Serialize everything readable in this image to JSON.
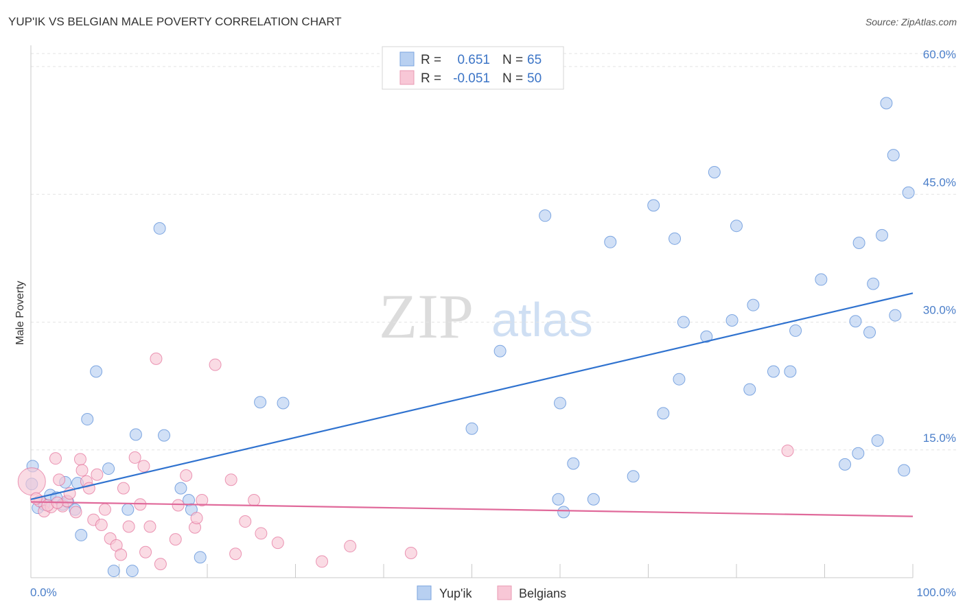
{
  "title": "YUP'IK VS BELGIAN MALE POVERTY CORRELATION CHART",
  "source": "Source: ZipAtlas.com",
  "watermark": {
    "zip": "ZIP",
    "atlas": "atlas"
  },
  "legend_box": {
    "r_label": "R =",
    "n_label": "N =",
    "rows": [
      {
        "r": "0.651",
        "n": "65",
        "color": "#a9c7ef"
      },
      {
        "r": "-0.051",
        "n": "50",
        "color": "#f6b8cc"
      }
    ]
  },
  "chart_data": {
    "type": "scatter",
    "xlabel": "",
    "ylabel": "Male Poverty",
    "xlim": [
      0,
      100
    ],
    "ylim": [
      0,
      60
    ],
    "x_ticks": [
      {
        "value": 0,
        "label": "0.0%"
      },
      {
        "value": 100,
        "label": "100.0%"
      }
    ],
    "y_ticks": [
      {
        "value": 15,
        "label": "15.0%"
      },
      {
        "value": 30,
        "label": "30.0%"
      },
      {
        "value": 45,
        "label": "45.0%"
      },
      {
        "value": 60,
        "label": "60.0%"
      }
    ],
    "grid": "horizontal dashed",
    "series": [
      {
        "name": "Yup'ik",
        "color": "#4f86d6",
        "fill": "#b8d0f1",
        "trend": {
          "x": [
            0,
            100
          ],
          "y": [
            9.2,
            33.4
          ]
        },
        "points": [
          [
            0.2,
            13.1
          ],
          [
            0.8,
            8.2
          ],
          [
            1.5,
            8.6
          ],
          [
            2.2,
            9.7
          ],
          [
            2.9,
            9.4
          ],
          [
            3.6,
            8.6
          ],
          [
            3.9,
            11.2
          ],
          [
            4.2,
            8.9
          ],
          [
            5.0,
            8.0
          ],
          [
            5.3,
            11.1
          ],
          [
            5.7,
            5.0
          ],
          [
            6.4,
            18.6
          ],
          [
            7.4,
            24.2
          ],
          [
            8.8,
            12.8
          ],
          [
            9.4,
            0.8
          ],
          [
            11.0,
            8.0
          ],
          [
            11.5,
            0.8
          ],
          [
            11.9,
            16.8
          ],
          [
            14.6,
            41.0
          ],
          [
            15.1,
            16.7
          ],
          [
            17.0,
            10.5
          ],
          [
            17.9,
            9.1
          ],
          [
            18.2,
            8.0
          ],
          [
            19.2,
            2.4
          ],
          [
            26.0,
            20.6
          ],
          [
            28.6,
            20.5
          ],
          [
            50.0,
            17.5
          ],
          [
            53.2,
            26.6
          ],
          [
            58.3,
            42.5
          ],
          [
            60.4,
            7.7
          ],
          [
            59.8,
            9.2
          ],
          [
            60.0,
            20.5
          ],
          [
            61.5,
            13.4
          ],
          [
            63.8,
            9.2
          ],
          [
            65.7,
            39.4
          ],
          [
            68.3,
            11.9
          ],
          [
            70.6,
            43.7
          ],
          [
            71.7,
            19.3
          ],
          [
            73.0,
            39.8
          ],
          [
            73.5,
            23.3
          ],
          [
            74.0,
            30.0
          ],
          [
            76.6,
            28.3
          ],
          [
            77.5,
            47.6
          ],
          [
            79.5,
            30.2
          ],
          [
            80.0,
            41.3
          ],
          [
            81.5,
            22.1
          ],
          [
            81.9,
            32.0
          ],
          [
            84.2,
            24.2
          ],
          [
            86.1,
            24.2
          ],
          [
            86.7,
            29.0
          ],
          [
            89.6,
            35.0
          ],
          [
            92.3,
            13.3
          ],
          [
            93.5,
            30.1
          ],
          [
            93.8,
            14.6
          ],
          [
            93.9,
            39.3
          ],
          [
            95.1,
            28.8
          ],
          [
            95.5,
            34.5
          ],
          [
            96.0,
            16.1
          ],
          [
            96.5,
            40.2
          ],
          [
            97.0,
            55.7
          ],
          [
            97.8,
            49.6
          ],
          [
            98.0,
            30.8
          ],
          [
            99.0,
            12.6
          ],
          [
            99.5,
            45.2
          ],
          [
            0.1,
            11.0
          ]
        ]
      },
      {
        "name": "Belgians",
        "color": "#e26c97",
        "fill": "#f8c7d6",
        "trend": {
          "x": [
            0,
            100
          ],
          "y": [
            8.9,
            7.2
          ]
        },
        "points": [
          [
            0.1,
            11.3
          ],
          [
            1.0,
            9.0
          ],
          [
            1.5,
            7.8
          ],
          [
            2.3,
            8.3
          ],
          [
            2.8,
            14.0
          ],
          [
            3.2,
            11.5
          ],
          [
            3.6,
            8.4
          ],
          [
            4.1,
            9.0
          ],
          [
            4.4,
            9.9
          ],
          [
            5.1,
            7.7
          ],
          [
            5.6,
            13.9
          ],
          [
            5.8,
            12.6
          ],
          [
            6.3,
            11.3
          ],
          [
            6.6,
            10.5
          ],
          [
            7.1,
            6.8
          ],
          [
            7.5,
            12.1
          ],
          [
            8.0,
            6.2
          ],
          [
            8.4,
            8.0
          ],
          [
            9.0,
            4.6
          ],
          [
            9.7,
            3.8
          ],
          [
            10.2,
            2.7
          ],
          [
            10.5,
            10.5
          ],
          [
            11.1,
            6.0
          ],
          [
            11.8,
            14.1
          ],
          [
            12.4,
            8.6
          ],
          [
            12.8,
            13.1
          ],
          [
            13.0,
            3.0
          ],
          [
            13.5,
            6.0
          ],
          [
            14.2,
            25.7
          ],
          [
            14.7,
            1.6
          ],
          [
            16.4,
            4.5
          ],
          [
            16.7,
            8.5
          ],
          [
            17.6,
            12.0
          ],
          [
            18.6,
            5.9
          ],
          [
            18.8,
            7.0
          ],
          [
            19.4,
            9.1
          ],
          [
            20.9,
            25.0
          ],
          [
            22.7,
            11.5
          ],
          [
            23.2,
            2.8
          ],
          [
            25.3,
            9.1
          ],
          [
            24.3,
            6.6
          ],
          [
            26.1,
            5.2
          ],
          [
            28.0,
            4.1
          ],
          [
            33.0,
            1.9
          ],
          [
            36.2,
            3.7
          ],
          [
            43.1,
            2.9
          ],
          [
            85.8,
            14.9
          ],
          [
            1.9,
            8.5
          ],
          [
            3.0,
            8.8
          ],
          [
            0.6,
            9.3
          ]
        ]
      }
    ]
  }
}
